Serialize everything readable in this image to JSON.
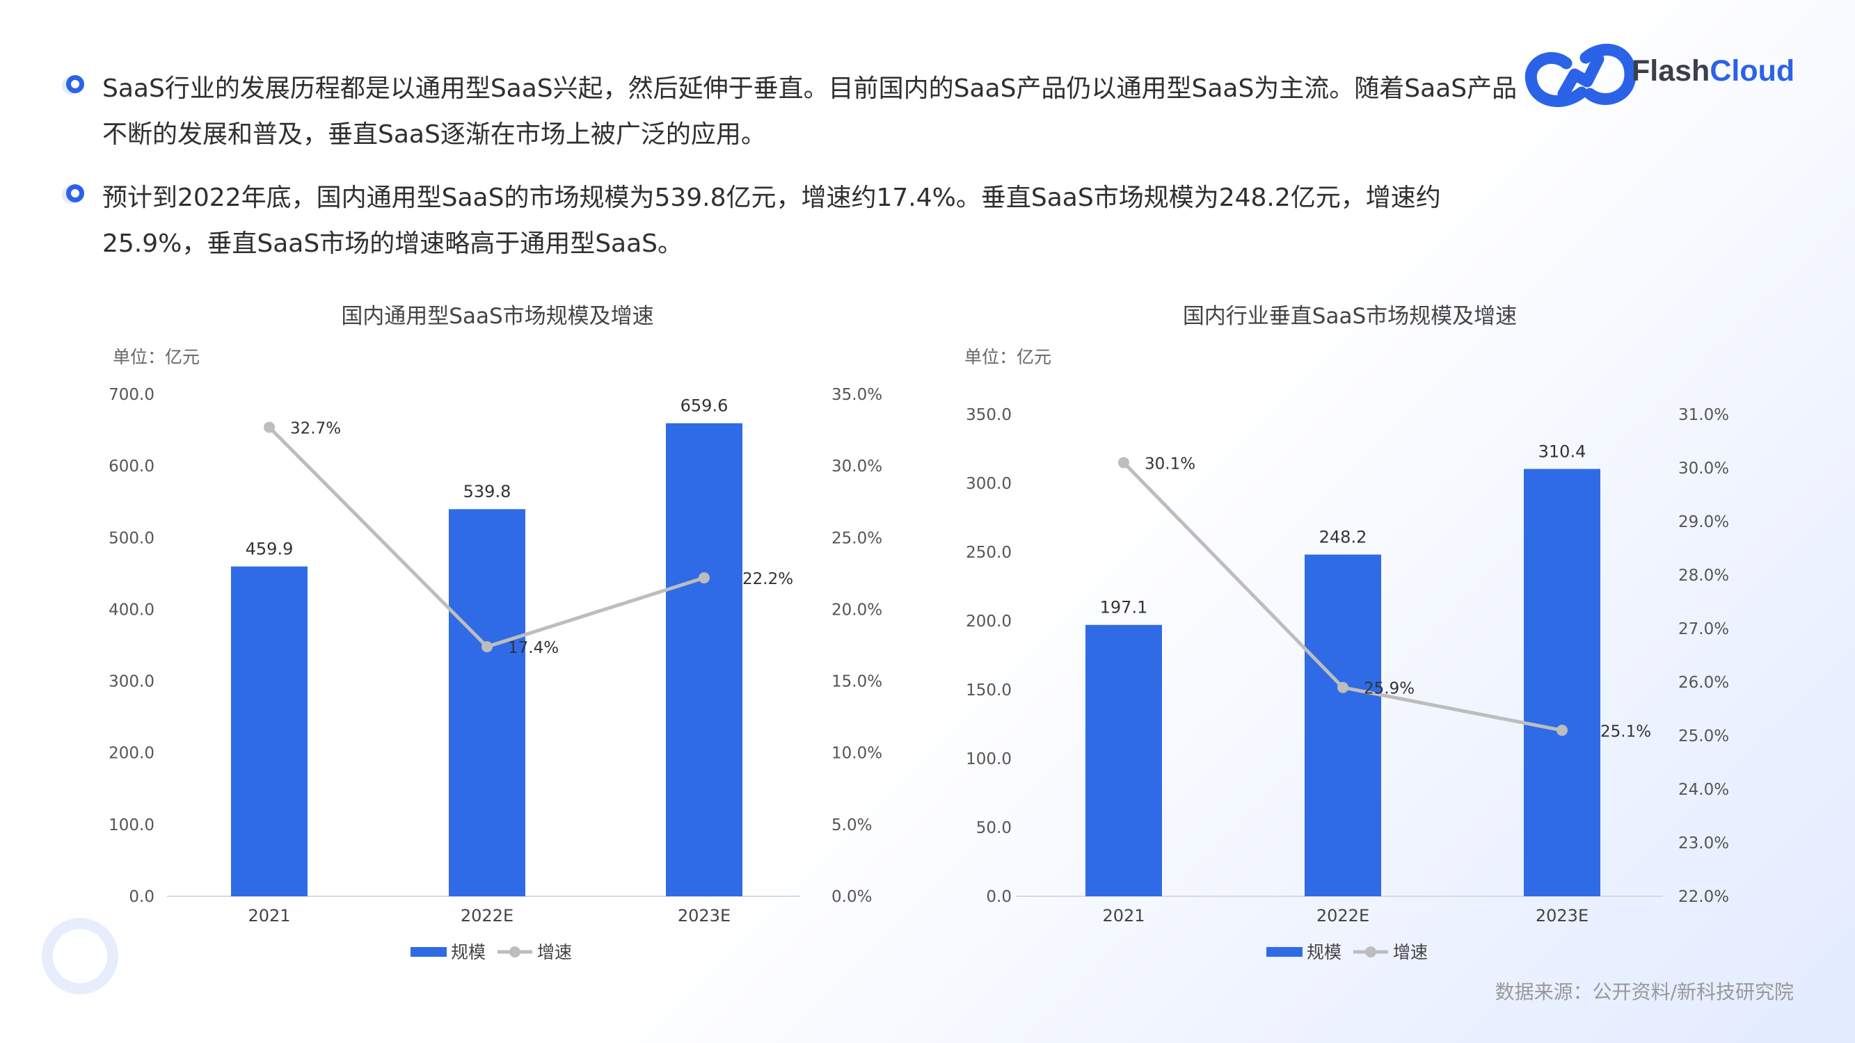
{
  "bullets": [
    "SaaS行业的发展历程都是以通用型SaaS兴起，然后延伸于垂直。目前国内的SaaS产品仍以通用型SaaS为主流。随着SaaS产品不断的发展和普及，垂直SaaS逐渐在市场上被广泛的应用。",
    "预计到2022年底，国内通用型SaaS的市场规模为539.8亿元，增速约17.4%。垂直SaaS市场规模为248.2亿元，增速约25.9%，垂直SaaS市场的增速略高于通用型SaaS。"
  ],
  "logo": {
    "word_a": "Flash",
    "word_b": "Cloud"
  },
  "source": "数据来源：公开资料/新科技研究院",
  "colors": {
    "bar": "#2f6be6",
    "line": "#bdbdbd",
    "accent": "#2b63e8"
  },
  "chart_data": [
    {
      "type": "bar",
      "title": "国内通用型SaaS市场规模及增速",
      "unit_label": "单位：亿元",
      "categories": [
        "2021",
        "2022E",
        "2023E"
      ],
      "series": [
        {
          "name": "规模",
          "kind": "bar",
          "values": [
            459.9,
            539.8,
            659.6
          ],
          "labels": [
            "459.9",
            "539.8",
            "659.6"
          ]
        },
        {
          "name": "增速",
          "kind": "line",
          "values": [
            32.7,
            17.4,
            22.2
          ],
          "labels": [
            "32.7%",
            "17.4%",
            "22.2%"
          ]
        }
      ],
      "ylim": [
        0,
        700
      ],
      "y_ticks": [
        "0.0",
        "100.0",
        "200.0",
        "300.0",
        "400.0",
        "500.0",
        "600.0",
        "700.0"
      ],
      "y2lim": [
        0,
        35
      ],
      "y2_ticks": [
        "0.0%",
        "5.0%",
        "10.0%",
        "15.0%",
        "20.0%",
        "25.0%",
        "30.0%",
        "35.0%"
      ],
      "legend": "bottom"
    },
    {
      "type": "bar",
      "title": "国内行业垂直SaaS市场规模及增速",
      "unit_label": "单位：亿元",
      "categories": [
        "2021",
        "2022E",
        "2023E"
      ],
      "series": [
        {
          "name": "规模",
          "kind": "bar",
          "values": [
            197.1,
            248.2,
            310.4
          ],
          "labels": [
            "197.1",
            "248.2",
            "310.4"
          ]
        },
        {
          "name": "增速",
          "kind": "line",
          "values": [
            30.1,
            25.9,
            25.1
          ],
          "labels": [
            "30.1%",
            "25.9%",
            "25.1%"
          ]
        }
      ],
      "ylim": [
        0,
        350
      ],
      "y_ticks": [
        "0.0",
        "50.0",
        "100.0",
        "150.0",
        "200.0",
        "250.0",
        "300.0",
        "350.0"
      ],
      "y2lim": [
        22,
        31
      ],
      "y2_ticks": [
        "22.0%",
        "23.0%",
        "24.0%",
        "25.0%",
        "26.0%",
        "27.0%",
        "28.0%",
        "29.0%",
        "30.0%",
        "31.0%"
      ],
      "legend": "bottom"
    }
  ]
}
